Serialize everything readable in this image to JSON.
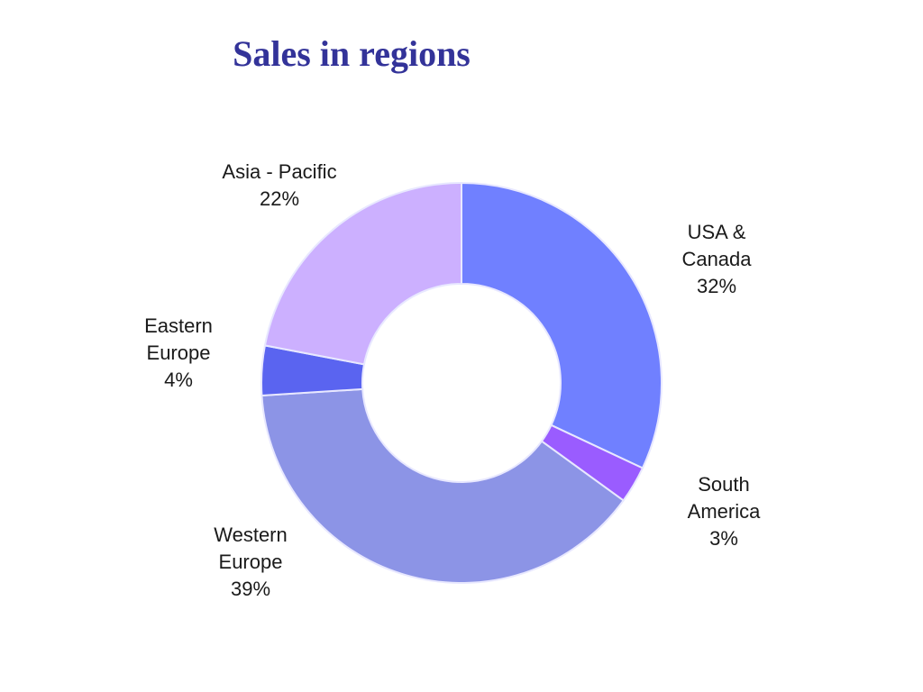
{
  "chart_data": {
    "type": "donut",
    "title": "Sales in regions",
    "categories": [
      "USA & Canada",
      "South America",
      "Western Europe",
      "Eastern Europe",
      "Asia - Pacific"
    ],
    "values": [
      32,
      3,
      39,
      4,
      22
    ],
    "value_labels": [
      "32%",
      "3%",
      "39%",
      "4%",
      "22%"
    ],
    "colors": [
      "#7080ff",
      "#9a5cff",
      "#8c94e6",
      "#5a64f0",
      "#ccb0ff"
    ]
  }
}
